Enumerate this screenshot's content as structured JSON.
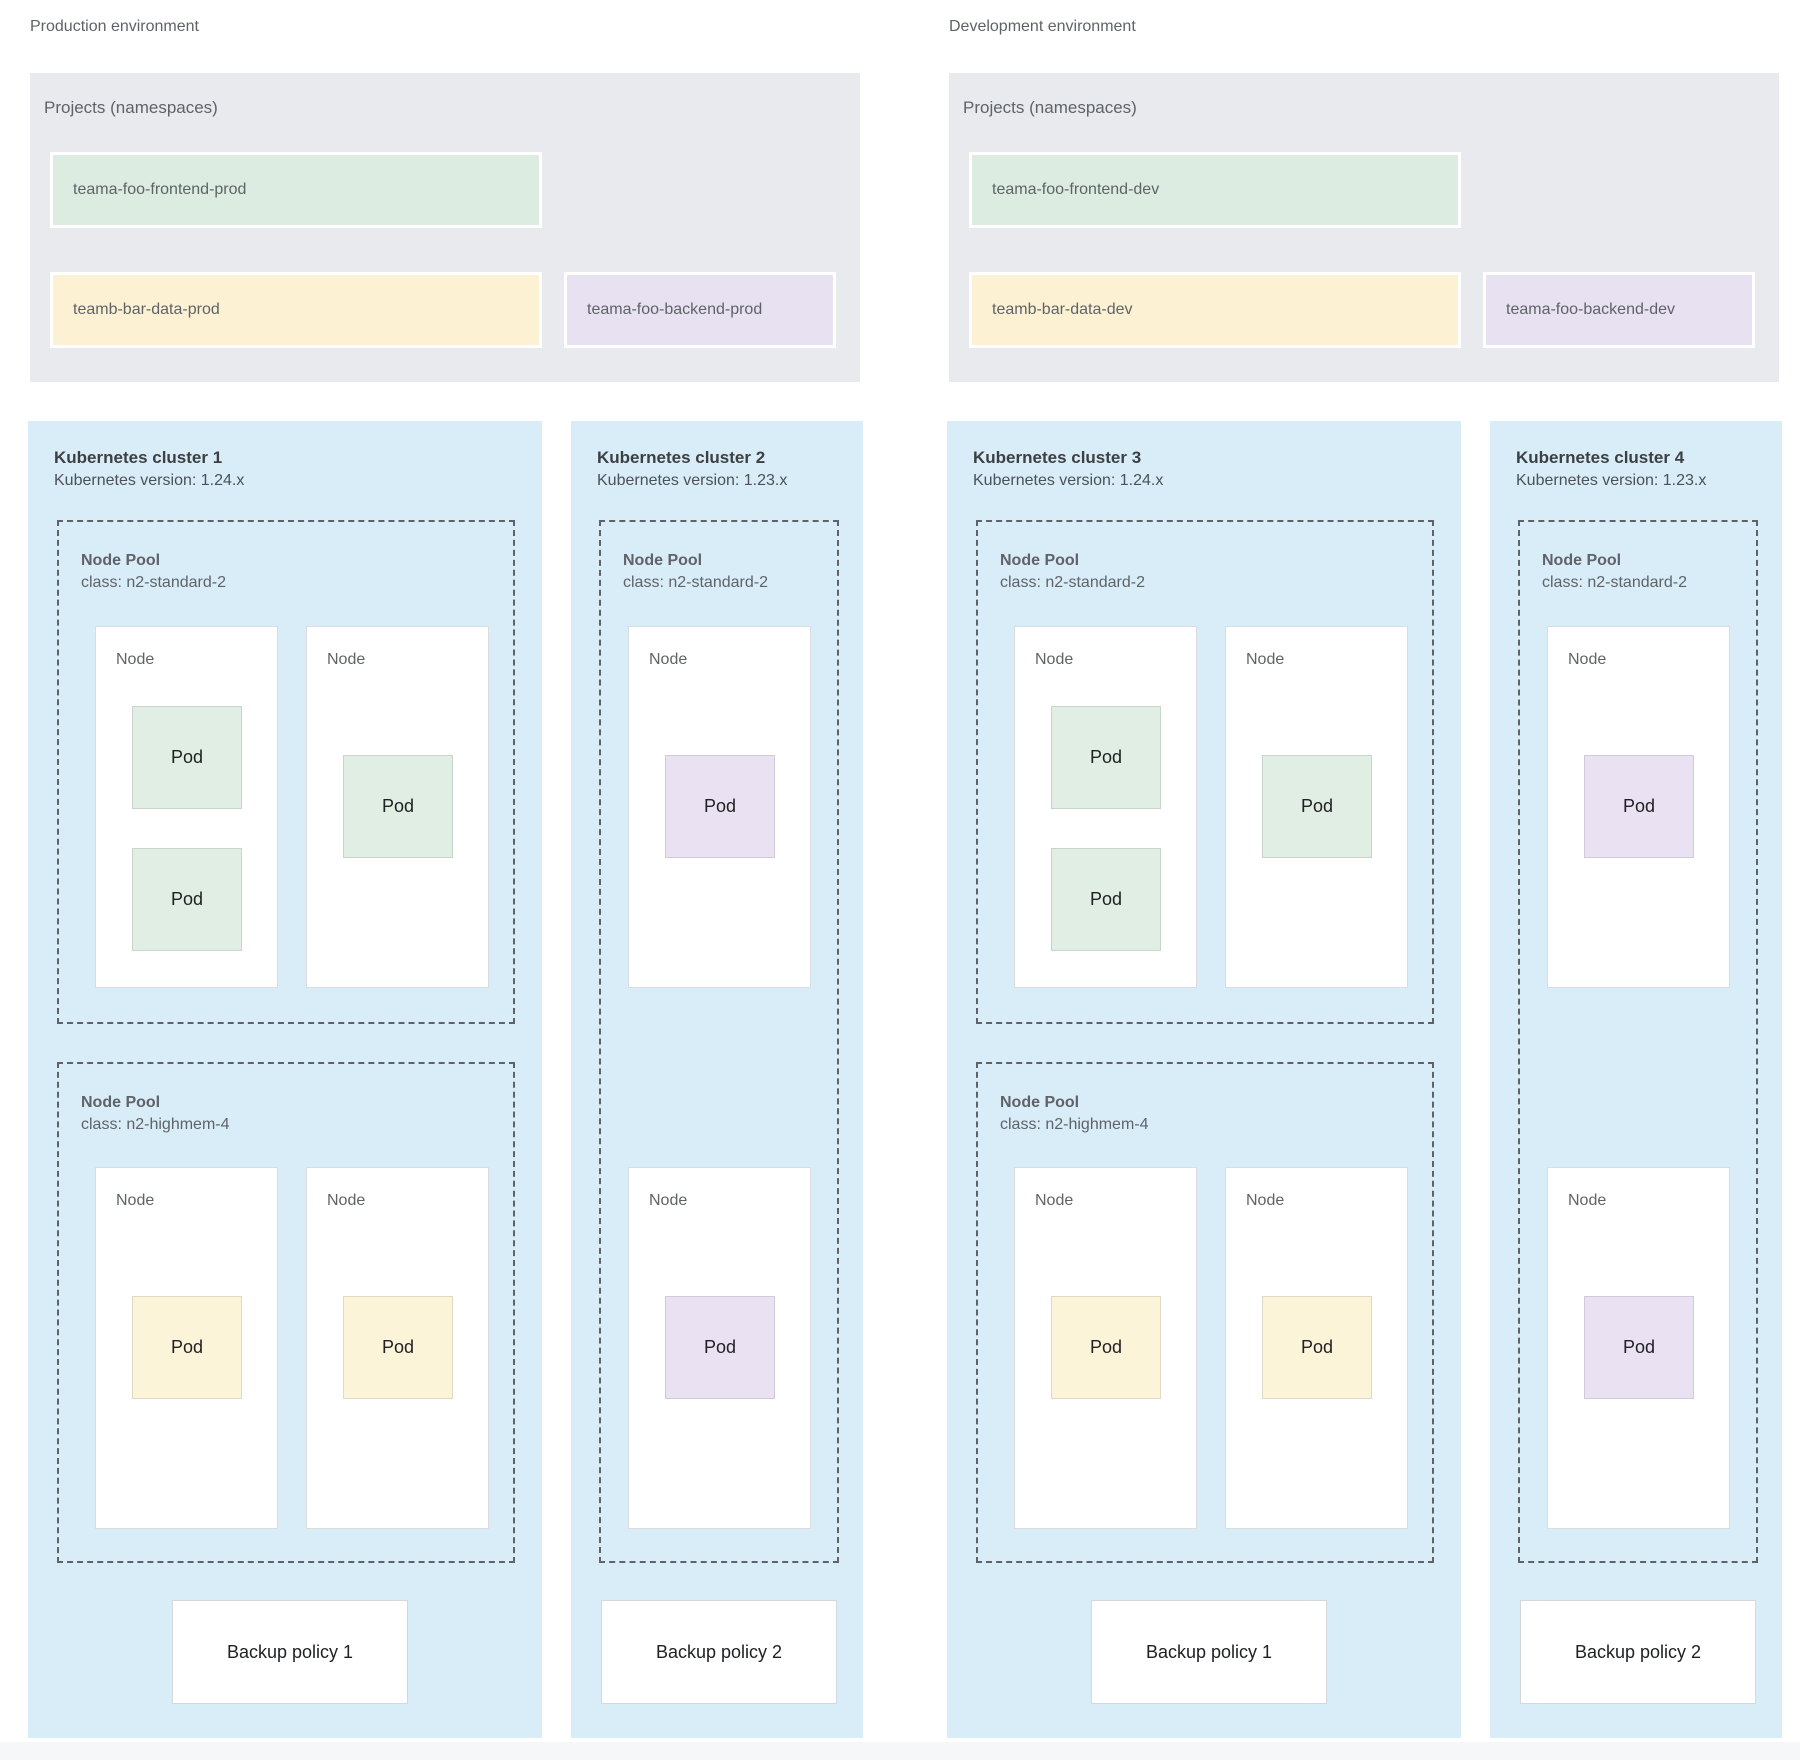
{
  "colors": {
    "cluster_bg": "#d9edf9",
    "projects_bg": "#e8eaed",
    "green": "#dcece0",
    "yellow": "#fcf2d3",
    "purple": "#e8e1f1",
    "dashed_border": "#5f6368",
    "label_text": "#5f6368",
    "title_text": "#3c4043"
  },
  "environments": [
    {
      "label": "Production environment",
      "projects": {
        "title": "Projects (namespaces)",
        "namespaces": [
          {
            "name": "teama-foo-frontend-prod",
            "color": "green"
          },
          {
            "name": "teamb-bar-data-prod",
            "color": "yellow"
          },
          {
            "name": "teama-foo-backend-prod",
            "color": "purple"
          }
        ]
      },
      "clusters": [
        {
          "title": "Kubernetes cluster 1",
          "version": "Kubernetes version: 1.24.x",
          "backup_policy": "Backup policy 1",
          "node_pools": [
            {
              "name": "Node Pool",
              "class": "class: n2-standard-2",
              "nodes": [
                {
                  "label": "Node",
                  "pods": [
                    {
                      "label": "Pod",
                      "color": "green"
                    },
                    {
                      "label": "Pod",
                      "color": "green"
                    }
                  ]
                },
                {
                  "label": "Node",
                  "pods": [
                    {
                      "label": "Pod",
                      "color": "green"
                    }
                  ]
                }
              ]
            },
            {
              "name": "Node Pool",
              "class": "class: n2-highmem-4",
              "nodes": [
                {
                  "label": "Node",
                  "pods": [
                    {
                      "label": "Pod",
                      "color": "yellow"
                    }
                  ]
                },
                {
                  "label": "Node",
                  "pods": [
                    {
                      "label": "Pod",
                      "color": "yellow"
                    }
                  ]
                }
              ]
            }
          ]
        },
        {
          "title": "Kubernetes cluster 2",
          "version": "Kubernetes version: 1.23.x",
          "backup_policy": "Backup policy 2",
          "node_pools": [
            {
              "name": "Node Pool",
              "class": "class: n2-standard-2",
              "nodes": [
                {
                  "label": "Node",
                  "pods": [
                    {
                      "label": "Pod",
                      "color": "purple"
                    }
                  ]
                },
                {
                  "label": "Node",
                  "pods": [
                    {
                      "label": "Pod",
                      "color": "purple"
                    }
                  ]
                }
              ]
            }
          ]
        }
      ]
    },
    {
      "label": "Development environment",
      "projects": {
        "title": "Projects (namespaces)",
        "namespaces": [
          {
            "name": "teama-foo-frontend-dev",
            "color": "green"
          },
          {
            "name": "teamb-bar-data-dev",
            "color": "yellow"
          },
          {
            "name": "teama-foo-backend-dev",
            "color": "purple"
          }
        ]
      },
      "clusters": [
        {
          "title": "Kubernetes cluster 3",
          "version": "Kubernetes version: 1.24.x",
          "backup_policy": "Backup policy 1",
          "node_pools": [
            {
              "name": "Node Pool",
              "class": "class: n2-standard-2",
              "nodes": [
                {
                  "label": "Node",
                  "pods": [
                    {
                      "label": "Pod",
                      "color": "green"
                    },
                    {
                      "label": "Pod",
                      "color": "green"
                    }
                  ]
                },
                {
                  "label": "Node",
                  "pods": [
                    {
                      "label": "Pod",
                      "color": "green"
                    }
                  ]
                }
              ]
            },
            {
              "name": "Node Pool",
              "class": "class: n2-highmem-4",
              "nodes": [
                {
                  "label": "Node",
                  "pods": [
                    {
                      "label": "Pod",
                      "color": "yellow"
                    }
                  ]
                },
                {
                  "label": "Node",
                  "pods": [
                    {
                      "label": "Pod",
                      "color": "yellow"
                    }
                  ]
                }
              ]
            }
          ]
        },
        {
          "title": "Kubernetes cluster 4",
          "version": "Kubernetes version: 1.23.x",
          "backup_policy": "Backup policy 2",
          "node_pools": [
            {
              "name": "Node Pool",
              "class": "class: n2-standard-2",
              "nodes": [
                {
                  "label": "Node",
                  "pods": [
                    {
                      "label": "Pod",
                      "color": "purple"
                    }
                  ]
                },
                {
                  "label": "Node",
                  "pods": [
                    {
                      "label": "Pod",
                      "color": "purple"
                    }
                  ]
                }
              ]
            }
          ]
        }
      ]
    }
  ]
}
